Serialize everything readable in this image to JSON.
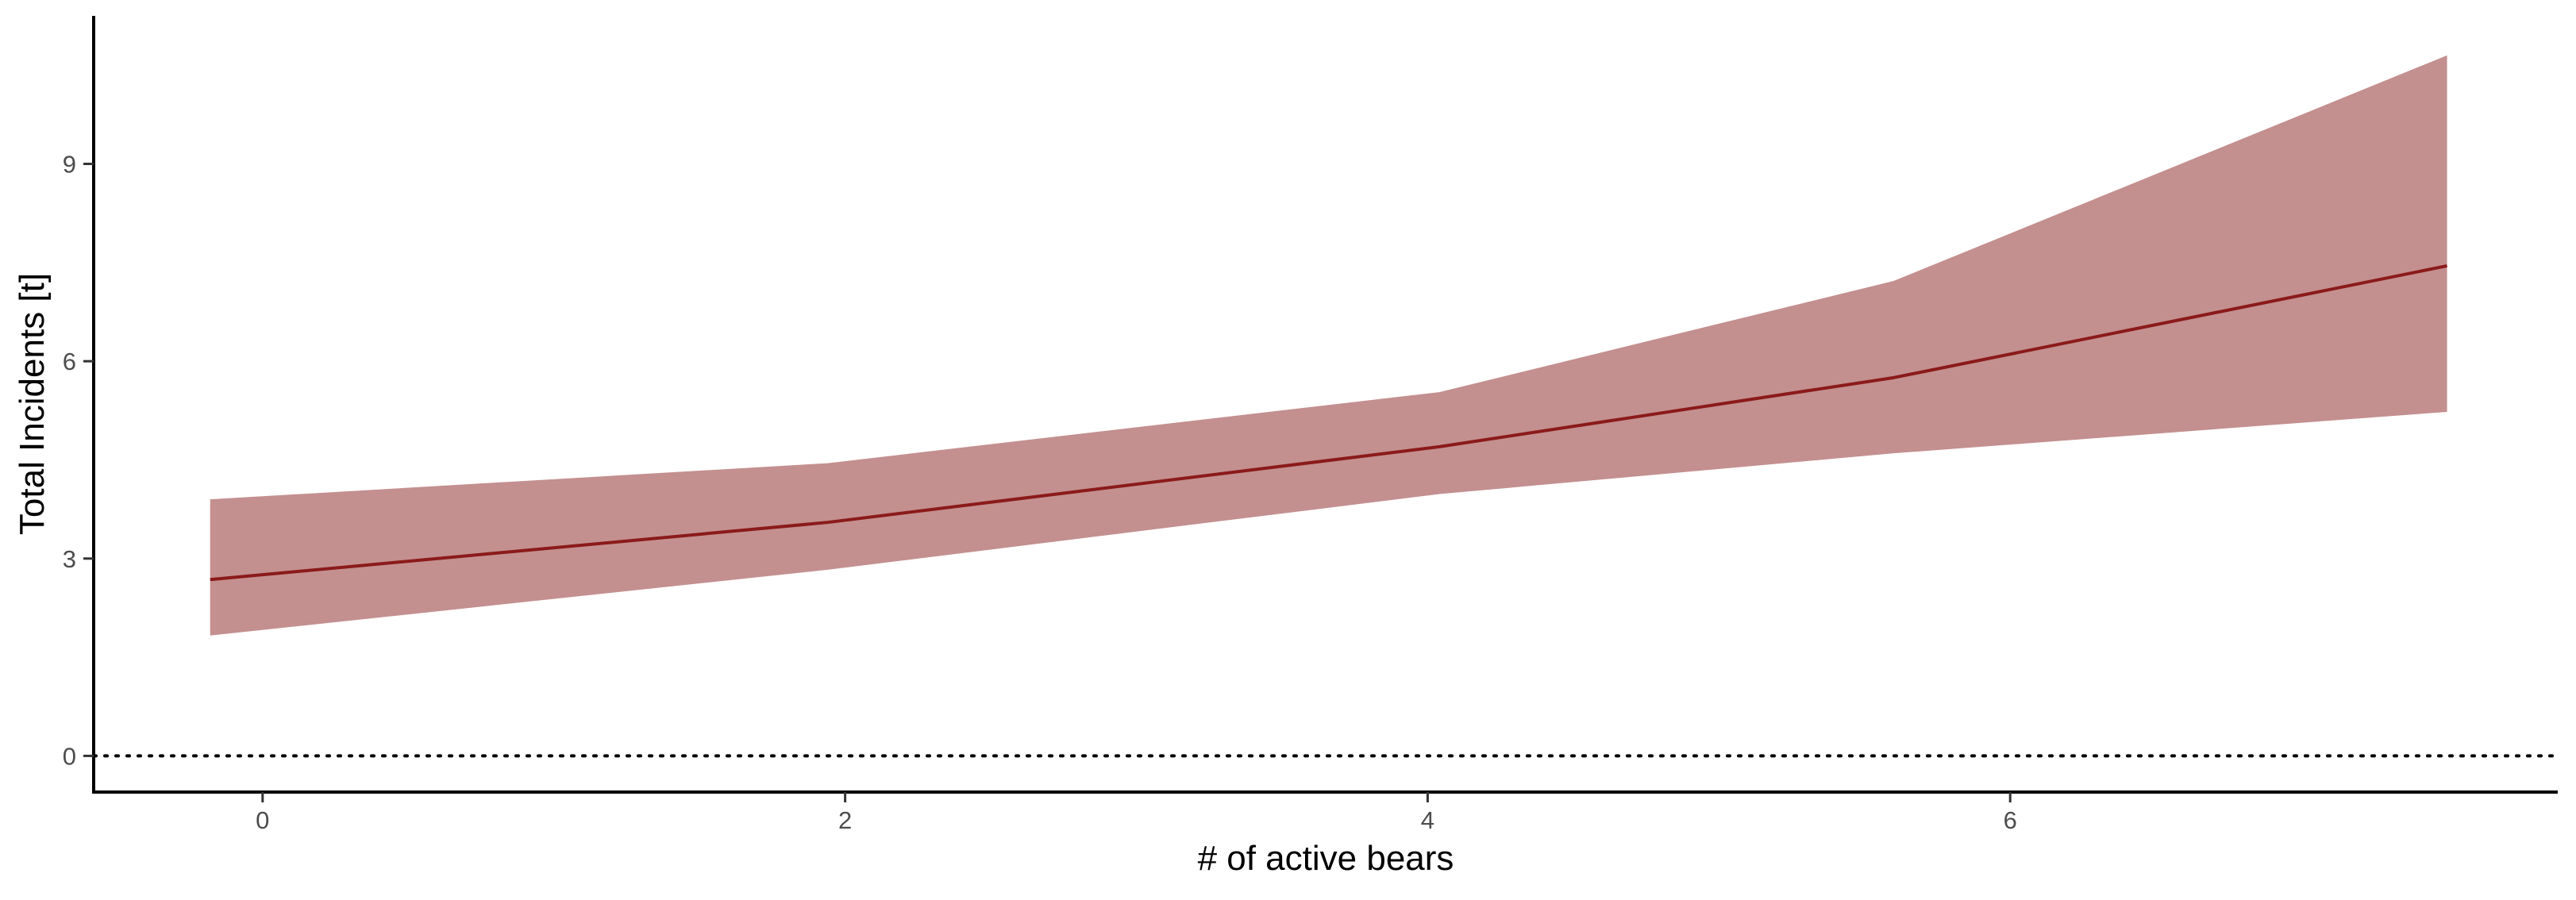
{
  "chart_data": {
    "type": "line",
    "title": "",
    "xlabel": "# of active bears",
    "ylabel": "Total Incidents [t]",
    "xlim": [
      -0.58,
      7.88
    ],
    "ylim": [
      -0.55,
      11.25
    ],
    "x_ticks": [
      0,
      2,
      4,
      6
    ],
    "y_ticks": [
      0,
      3,
      6,
      9
    ],
    "reference_line": {
      "y": 0,
      "style": "dotted"
    },
    "grid": false,
    "legend": "none",
    "series": [
      {
        "x": [
          -0.18,
          1.94,
          4.04,
          5.6,
          7.5
        ],
        "y": [
          2.68,
          3.55,
          4.7,
          5.75,
          7.45
        ],
        "lower": [
          1.83,
          2.83,
          3.98,
          4.6,
          5.23
        ],
        "upper": [
          3.9,
          4.45,
          5.53,
          7.22,
          10.65
        ]
      }
    ],
    "colors": {
      "line": "#8b1a1a",
      "ribbon": "#c48f8f",
      "axis": "#000000",
      "tick_label": "#4d4d4d"
    }
  }
}
